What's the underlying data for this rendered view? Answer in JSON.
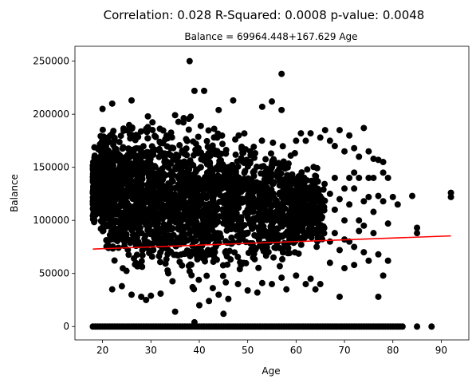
{
  "chart_data": {
    "type": "scatter",
    "title": "Correlation: 0.028  R-Squared: 0.0008 p-value: 0.0048",
    "subtitle": "Balance = 69964.448+167.629 Age",
    "xlabel": "Age",
    "ylabel": "Balance",
    "xlim": [
      14.3,
      95.7
    ],
    "ylim": [
      -12600,
      264000
    ],
    "x_ticks": [
      20,
      30,
      40,
      50,
      60,
      70,
      80,
      90
    ],
    "y_ticks": [
      0,
      50000,
      100000,
      150000,
      200000,
      250000
    ],
    "x_tick_labels": [
      "20",
      "30",
      "40",
      "50",
      "60",
      "70",
      "80",
      "90"
    ],
    "y_tick_labels": [
      "0",
      "50000",
      "100000",
      "150000",
      "200000",
      "250000"
    ],
    "grid": false,
    "point_color": "#000000",
    "line_color": "#ff0000",
    "regression": {
      "intercept": 69964.448,
      "slope": 167.629,
      "x_range": [
        18,
        92
      ]
    },
    "zero_balance_ages": [
      18,
      19,
      20,
      21,
      22,
      23,
      24,
      25,
      26,
      27,
      28,
      29,
      30,
      31,
      32,
      33,
      34,
      35,
      36,
      37,
      38,
      39,
      40,
      41,
      42,
      43,
      44,
      45,
      46,
      47,
      48,
      49,
      50,
      51,
      52,
      53,
      54,
      55,
      56,
      57,
      58,
      59,
      60,
      61,
      62,
      63,
      64,
      65,
      66,
      67,
      68,
      69,
      70,
      71,
      72,
      73,
      74,
      75,
      76,
      77,
      78,
      79,
      80,
      81,
      82,
      85,
      88
    ],
    "dense_cloud": [
      {
        "age": 18,
        "min": 85000,
        "max": 175000
      },
      {
        "age": 19,
        "min": 80000,
        "max": 185000
      },
      {
        "age": 20,
        "min": 75000,
        "max": 200000
      },
      {
        "age": 22,
        "min": 40000,
        "max": 205000
      },
      {
        "age": 25,
        "min": 35000,
        "max": 210000
      },
      {
        "age": 28,
        "min": 30000,
        "max": 210000
      },
      {
        "age": 30,
        "min": 30000,
        "max": 210000
      },
      {
        "age": 33,
        "min": 25000,
        "max": 212000
      },
      {
        "age": 35,
        "min": 25000,
        "max": 212000
      },
      {
        "age": 38,
        "min": 22000,
        "max": 210000
      },
      {
        "age": 40,
        "min": 22000,
        "max": 210000
      },
      {
        "age": 43,
        "min": 25000,
        "max": 205000
      },
      {
        "age": 46,
        "min": 30000,
        "max": 205000
      },
      {
        "age": 49,
        "min": 35000,
        "max": 200000
      },
      {
        "age": 52,
        "min": 40000,
        "max": 195000
      },
      {
        "age": 55,
        "min": 45000,
        "max": 190000
      },
      {
        "age": 58,
        "min": 50000,
        "max": 180000
      },
      {
        "age": 61,
        "min": 55000,
        "max": 170000
      },
      {
        "age": 64,
        "min": 60000,
        "max": 160000
      },
      {
        "age": 66,
        "min": 65000,
        "max": 150000
      }
    ],
    "outliers": [
      [
        38,
        250000
      ],
      [
        57,
        238000
      ],
      [
        41,
        222000
      ],
      [
        39,
        222000
      ],
      [
        26,
        213000
      ],
      [
        22,
        210000
      ],
      [
        20,
        205000
      ],
      [
        47,
        213000
      ],
      [
        53,
        207000
      ],
      [
        55,
        212000
      ],
      [
        57,
        204000
      ],
      [
        44,
        204000
      ],
      [
        29,
        25000
      ],
      [
        32,
        31000
      ],
      [
        35,
        14000
      ],
      [
        39,
        4000
      ],
      [
        40,
        20000
      ],
      [
        45,
        12000
      ],
      [
        44,
        30000
      ],
      [
        50,
        34000
      ],
      [
        52,
        32000
      ],
      [
        55,
        40000
      ],
      [
        58,
        35000
      ],
      [
        62,
        40000
      ],
      [
        64,
        35000
      ],
      [
        65,
        40000
      ],
      [
        22,
        35000
      ],
      [
        24,
        38000
      ],
      [
        26,
        30000
      ],
      [
        28,
        28000
      ],
      [
        30,
        29000
      ],
      [
        42,
        24000
      ],
      [
        46,
        26000
      ],
      [
        48,
        40000
      ],
      [
        53,
        41000
      ],
      [
        57,
        46000
      ],
      [
        60,
        48000
      ],
      [
        63,
        45000
      ],
      [
        67,
        175000
      ],
      [
        68,
        170000
      ],
      [
        69,
        185000
      ],
      [
        70,
        165000
      ],
      [
        71,
        180000
      ],
      [
        72,
        168000
      ],
      [
        73,
        160000
      ],
      [
        74,
        187000
      ],
      [
        75,
        165000
      ],
      [
        76,
        158000
      ],
      [
        77,
        157000
      ],
      [
        78,
        155000
      ],
      [
        67,
        125000
      ],
      [
        68,
        110000
      ],
      [
        69,
        120000
      ],
      [
        70,
        100000
      ],
      [
        71,
        115000
      ],
      [
        72,
        130000
      ],
      [
        73,
        100000
      ],
      [
        74,
        118000
      ],
      [
        75,
        122000
      ],
      [
        76,
        108000
      ],
      [
        77,
        123000
      ],
      [
        78,
        118000
      ],
      [
        79,
        97000
      ],
      [
        80,
        122000
      ],
      [
        81,
        115000
      ],
      [
        84,
        123000
      ],
      [
        85,
        88000
      ],
      [
        85,
        93000
      ],
      [
        92,
        122000
      ],
      [
        92,
        126000
      ],
      [
        67,
        80000
      ],
      [
        68,
        88000
      ],
      [
        69,
        72000
      ],
      [
        70,
        82000
      ],
      [
        71,
        80000
      ],
      [
        72,
        75000
      ],
      [
        73,
        90000
      ],
      [
        74,
        70000
      ],
      [
        75,
        62000
      ],
      [
        76,
        88000
      ],
      [
        77,
        68000
      ],
      [
        78,
        48000
      ],
      [
        79,
        62000
      ],
      [
        69,
        28000
      ],
      [
        77,
        28000
      ],
      [
        67,
        60000
      ],
      [
        70,
        55000
      ],
      [
        72,
        58000
      ],
      [
        74,
        95000
      ],
      [
        76,
        140000
      ],
      [
        78,
        145000
      ],
      [
        79,
        140000
      ],
      [
        75,
        140000
      ],
      [
        73,
        140000
      ],
      [
        71,
        140000
      ],
      [
        68,
        140000
      ],
      [
        70,
        130000
      ],
      [
        72,
        145000
      ],
      [
        66,
        185000
      ],
      [
        65,
        178000
      ],
      [
        63,
        182000
      ],
      [
        62,
        175000
      ],
      [
        61,
        182000
      ],
      [
        60,
        175000
      ]
    ]
  }
}
